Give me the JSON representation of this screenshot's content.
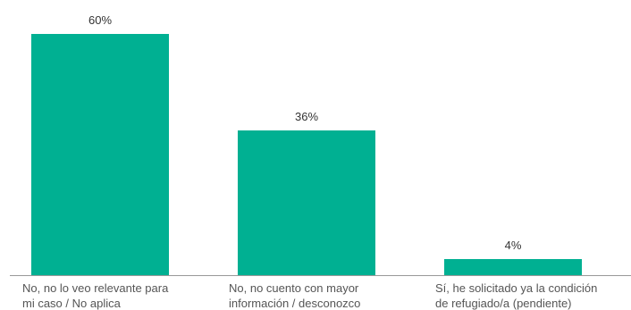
{
  "chart_data": {
    "type": "bar",
    "title": "",
    "xlabel": "",
    "ylabel": "",
    "categories": [
      [
        "No, no lo veo relevante para",
        "mi caso / No aplica"
      ],
      [
        "No, no cuento con mayor",
        "información / desconozco"
      ],
      [
        "Sí, he solicitado ya la condición",
        "de refugiado/a (pendiente)"
      ]
    ],
    "values": [
      60,
      36,
      4
    ],
    "value_labels": [
      "60%",
      "36%",
      "4%"
    ],
    "ylim": [
      0,
      60
    ],
    "grid": false,
    "bar_color": "#00b092",
    "axis_color": "#999999"
  }
}
